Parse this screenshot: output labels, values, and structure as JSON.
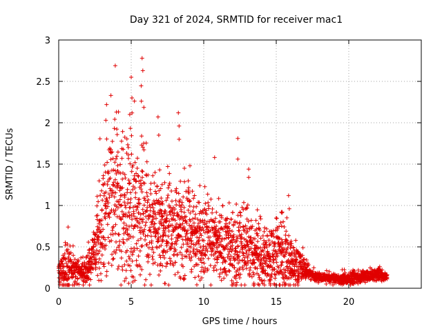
{
  "chart_data": {
    "type": "scatter",
    "title": "Day 321 of 2024, SRMTID for receiver mac1",
    "xlabel": "GPS time / hours",
    "ylabel": "SRMTID / TECUs",
    "xlim": [
      0,
      25
    ],
    "ylim": [
      0,
      3
    ],
    "xticks": [
      0,
      5,
      10,
      15,
      20
    ],
    "xtick_labels": [
      "0",
      "5",
      "10",
      "15",
      "20"
    ],
    "yticks": [
      0,
      0.5,
      1,
      1.5,
      2,
      2.5,
      3
    ],
    "ytick_labels": [
      "0",
      "0.5",
      "1",
      "1.5",
      "2",
      "2.5",
      "3"
    ],
    "grid": true,
    "marker": "+",
    "color": "#e00000",
    "series": [
      {
        "name": "SRMTID",
        "envelope": {
          "hours": [
            0,
            0.5,
            1,
            1.5,
            2,
            2.5,
            3,
            3.5,
            4,
            4.5,
            5,
            5.5,
            6,
            6.5,
            7,
            7.5,
            8,
            8.5,
            9,
            9.5,
            10,
            10.5,
            11,
            11.5,
            12,
            12.5,
            13,
            13.5,
            14,
            14.5,
            15,
            15.5,
            16,
            16.5,
            17,
            17.5,
            18,
            18.5,
            19,
            19.5,
            20,
            20.5,
            21,
            21.5,
            22,
            22.5
          ],
          "median": [
            0.2,
            0.25,
            0.22,
            0.2,
            0.22,
            0.45,
            0.75,
            1.0,
            1.0,
            0.95,
            0.9,
            0.95,
            0.9,
            0.75,
            0.7,
            0.72,
            0.7,
            0.7,
            0.68,
            0.62,
            0.6,
            0.6,
            0.52,
            0.5,
            0.48,
            0.45,
            0.45,
            0.42,
            0.4,
            0.38,
            0.45,
            0.4,
            0.3,
            0.28,
            0.22,
            0.15,
            0.13,
            0.12,
            0.11,
            0.11,
            0.12,
            0.13,
            0.15,
            0.16,
            0.17,
            0.14
          ],
          "spread": [
            0.12,
            0.25,
            0.15,
            0.1,
            0.15,
            0.3,
            0.6,
            0.7,
            0.75,
            0.7,
            0.75,
            0.7,
            0.6,
            0.45,
            0.45,
            0.45,
            0.45,
            0.4,
            0.4,
            0.35,
            0.4,
            0.38,
            0.35,
            0.35,
            0.4,
            0.35,
            0.35,
            0.3,
            0.3,
            0.25,
            0.35,
            0.35,
            0.25,
            0.2,
            0.1,
            0.05,
            0.04,
            0.04,
            0.04,
            0.05,
            0.06,
            0.06,
            0.06,
            0.06,
            0.06,
            0.04
          ]
        },
        "outliers": [
          {
            "x": 3.9,
            "y": 2.69
          },
          {
            "x": 5.0,
            "y": 2.55
          },
          {
            "x": 5.05,
            "y": 2.3
          },
          {
            "x": 5.75,
            "y": 2.78
          },
          {
            "x": 5.8,
            "y": 2.63
          },
          {
            "x": 5.7,
            "y": 2.26
          },
          {
            "x": 3.6,
            "y": 2.33
          },
          {
            "x": 3.3,
            "y": 2.22
          },
          {
            "x": 3.25,
            "y": 2.03
          },
          {
            "x": 4.9,
            "y": 2.1
          },
          {
            "x": 6.85,
            "y": 2.07
          },
          {
            "x": 6.9,
            "y": 1.85
          },
          {
            "x": 8.25,
            "y": 2.12
          },
          {
            "x": 8.3,
            "y": 1.96
          },
          {
            "x": 8.3,
            "y": 1.8
          },
          {
            "x": 12.35,
            "y": 1.81
          },
          {
            "x": 12.35,
            "y": 1.56
          },
          {
            "x": 13.1,
            "y": 1.44
          },
          {
            "x": 13.1,
            "y": 1.34
          },
          {
            "x": 10.75,
            "y": 1.58
          },
          {
            "x": 9.05,
            "y": 1.48
          },
          {
            "x": 0.65,
            "y": 0.74
          },
          {
            "x": 15.85,
            "y": 1.12
          },
          {
            "x": 15.9,
            "y": 0.96
          }
        ]
      }
    ]
  }
}
